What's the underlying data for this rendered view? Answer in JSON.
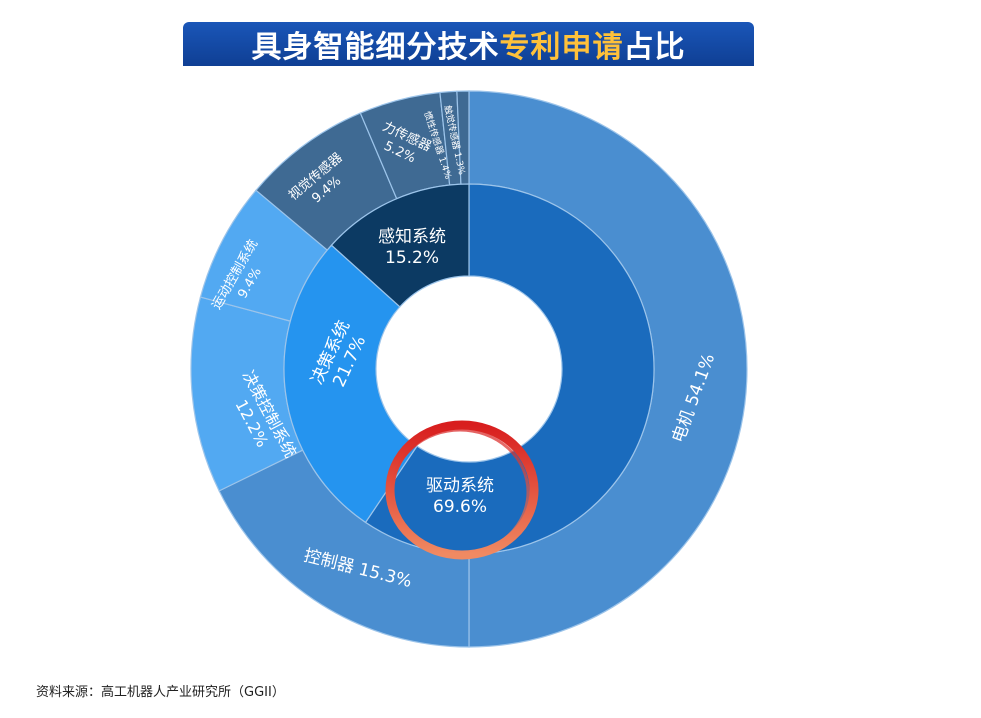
{
  "title": {
    "prefix": "具身智能细分技术",
    "highlight": "专利申请",
    "suffix": "占比"
  },
  "source": "资料来源：高工机器人产业研究所（GGII）",
  "colors": {
    "title_bg": "#1a56b8",
    "title_highlight": "#ffc13a",
    "circle_mark": "#e8402a"
  },
  "chart_data": {
    "type": "sunburst",
    "inner": [
      {
        "name": "驱动系统",
        "value": 69.6,
        "label": "69.6%",
        "color": "#1a6bbd"
      },
      {
        "name": "决策系统",
        "value": 21.7,
        "label": "21.7%",
        "color": "#2594ef"
      },
      {
        "name": "感知系统",
        "value": 15.2,
        "label": "15.2%",
        "color": "#0c3a63"
      }
    ],
    "outer": [
      {
        "name": "电机",
        "value": 54.1,
        "label": "54.1%",
        "parent": "驱动系统",
        "color": "#4a8ed0"
      },
      {
        "name": "控制器",
        "value": 15.3,
        "label": "15.3%",
        "parent": "驱动系统",
        "color": "#4a8ed0"
      },
      {
        "name": "决策控制系统",
        "value": 12.2,
        "label": "12.2%",
        "parent": "决策系统",
        "color": "#52a9f2"
      },
      {
        "name": "运动控制系统",
        "value": 9.4,
        "label": "9.4%",
        "parent": "决策系统",
        "color": "#52a9f2"
      },
      {
        "name": "视觉传感器",
        "value": 9.4,
        "label": "9.4%",
        "parent": "感知系统",
        "color": "#3f6a93"
      },
      {
        "name": "力传感器",
        "value": 5.2,
        "label": "5.2%",
        "parent": "感知系统",
        "color": "#3f6a93"
      },
      {
        "name": "惯性传感器",
        "value": 1.4,
        "label": "1.4%",
        "parent": "感知系统",
        "color": "#3f6a93"
      },
      {
        "name": "触觉传感器",
        "value": 1.3,
        "label": "1.3%",
        "parent": "感知系统",
        "color": "#3f6a93"
      }
    ]
  }
}
